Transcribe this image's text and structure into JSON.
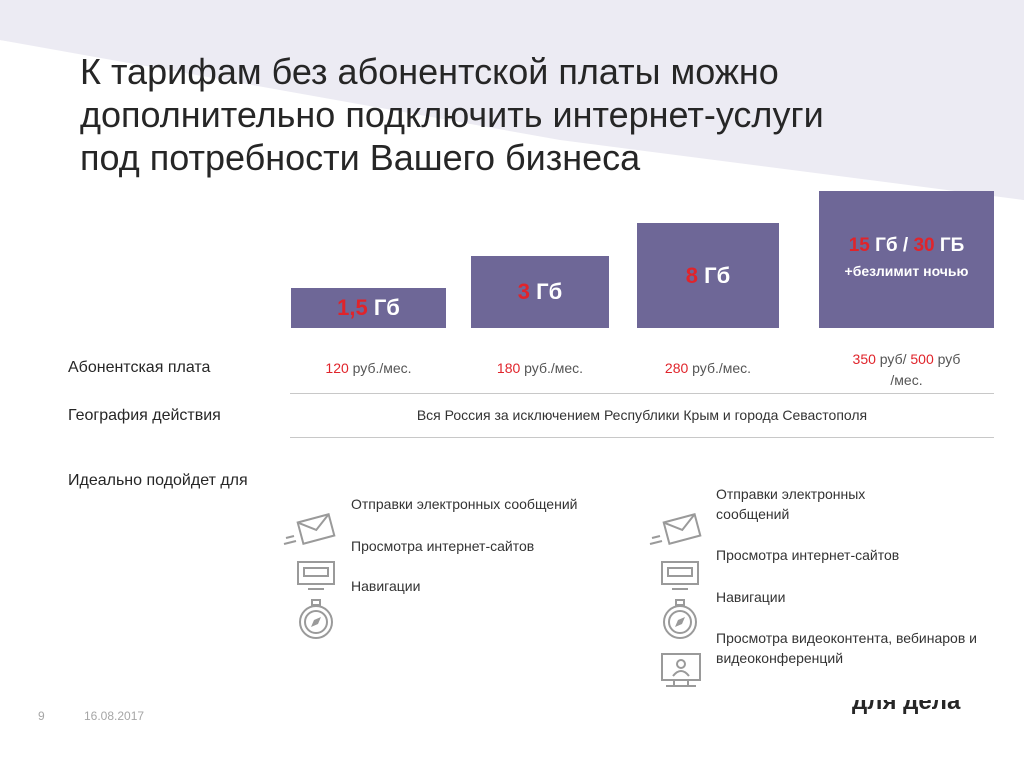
{
  "title": {
    "line1": "К тарифам без абонентской платы можно",
    "line2": "дополнительно подключить интернет-услуги",
    "line3": "под потребности Вашего бизнеса"
  },
  "tiers": [
    {
      "value": "1,5",
      "unit": " Гб"
    },
    {
      "value": "3",
      "unit": " Гб"
    },
    {
      "value": "8",
      "unit": " Гб"
    },
    {
      "value1": "15",
      "unit1": " Гб / ",
      "value2": "30",
      "unit2": " ГБ",
      "note": "+безлимит ночью"
    }
  ],
  "rows": {
    "fee_label": "Абонентская плата",
    "geo_label": "География действия",
    "ideal_label": "Идеально подойдет для"
  },
  "prices": [
    {
      "amount": "120",
      "unit": " руб./мес."
    },
    {
      "amount": "180",
      "unit": " руб./мес."
    },
    {
      "amount": "280",
      "unit": " руб./мес."
    },
    {
      "amount1": "350",
      "unit1": " руб/ ",
      "amount2": "500",
      "unit2": " руб",
      "line2": "/мес."
    }
  ],
  "geo": "Вся Россия за исключением Республики Крым и города Севастополя",
  "uses_left": [
    "Отправки электронных сообщений",
    "Просмотра интернет-сайтов",
    "Навигации"
  ],
  "uses_right": [
    "Отправки электронных сообщений",
    "Просмотра интернет-сайтов",
    "Навигации",
    "Просмотра видеоконтента, вебинаров и видеоконференций"
  ],
  "footer": {
    "page": "9",
    "date": "16.08.2017",
    "brand": "для дела"
  },
  "colors": {
    "tier_bg": "#6e6797",
    "accent_red": "#e0242b",
    "bg_band": "#e9e8f1"
  },
  "icons": [
    "envelope-icon",
    "monitor-icon",
    "compass-icon",
    "video-screen-icon"
  ]
}
